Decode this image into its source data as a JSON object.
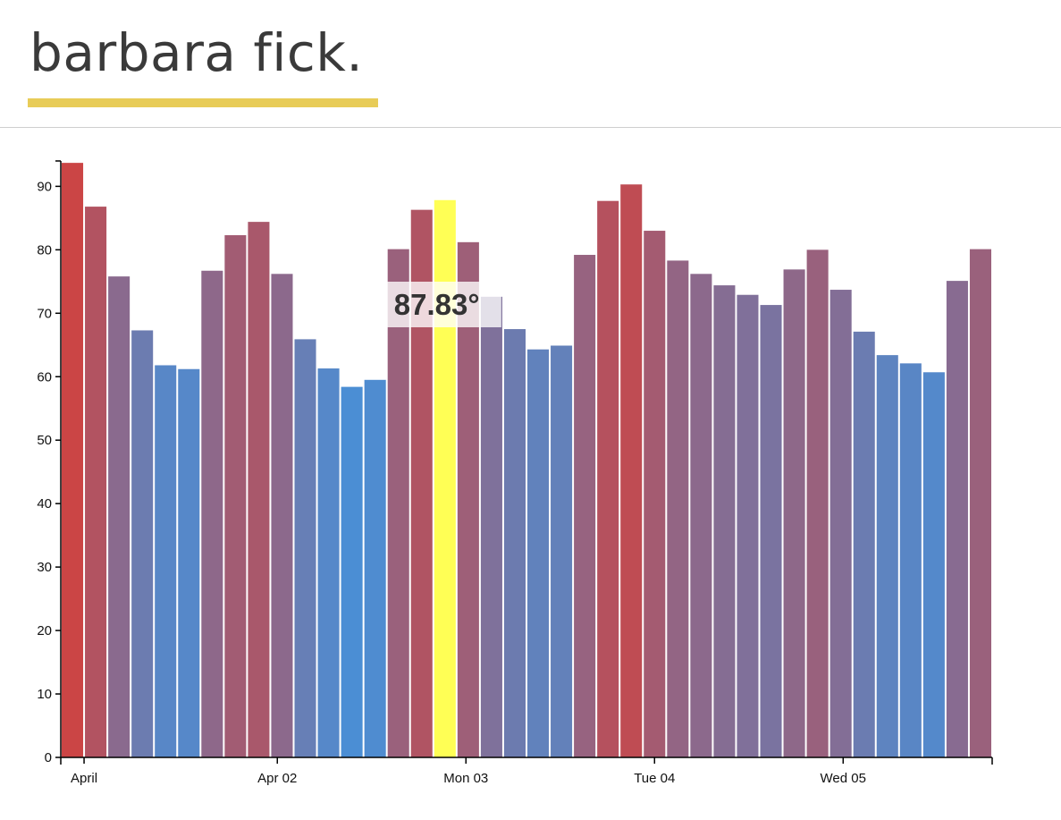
{
  "header": {
    "brand": "barbara fick.",
    "underline_color": "#e8cc58"
  },
  "chart_data": {
    "type": "bar",
    "ylim": [
      0,
      94
    ],
    "y_ticks": [
      0,
      10,
      20,
      30,
      40,
      50,
      60,
      70,
      80,
      90
    ],
    "x_ticks": [
      {
        "label": "April",
        "index": 1
      },
      {
        "label": "Apr 02",
        "index": 9.3
      },
      {
        "label": "Mon 03",
        "index": 17.4
      },
      {
        "label": "Tue 04",
        "index": 25.5
      },
      {
        "label": "Wed 05",
        "index": 33.6
      }
    ],
    "values": [
      93.7,
      86.8,
      75.8,
      67.3,
      61.8,
      61.2,
      76.7,
      82.3,
      84.4,
      76.2,
      65.9,
      61.3,
      58.4,
      59.5,
      80.1,
      86.3,
      87.83,
      81.2,
      72.6,
      67.5,
      64.3,
      64.9,
      79.2,
      87.7,
      90.3,
      83.0,
      78.3,
      76.2,
      74.4,
      72.9,
      71.3,
      76.9,
      80.0,
      73.7,
      67.1,
      63.4,
      62.1,
      60.7,
      75.1,
      80.1
    ],
    "highlight_index": 16,
    "highlight_color": "#ffff55",
    "color_scale": {
      "low": "#4a8fd6",
      "high": "#cc4444",
      "min": 58,
      "max": 94
    },
    "tooltip": {
      "text": "87.83°"
    }
  }
}
